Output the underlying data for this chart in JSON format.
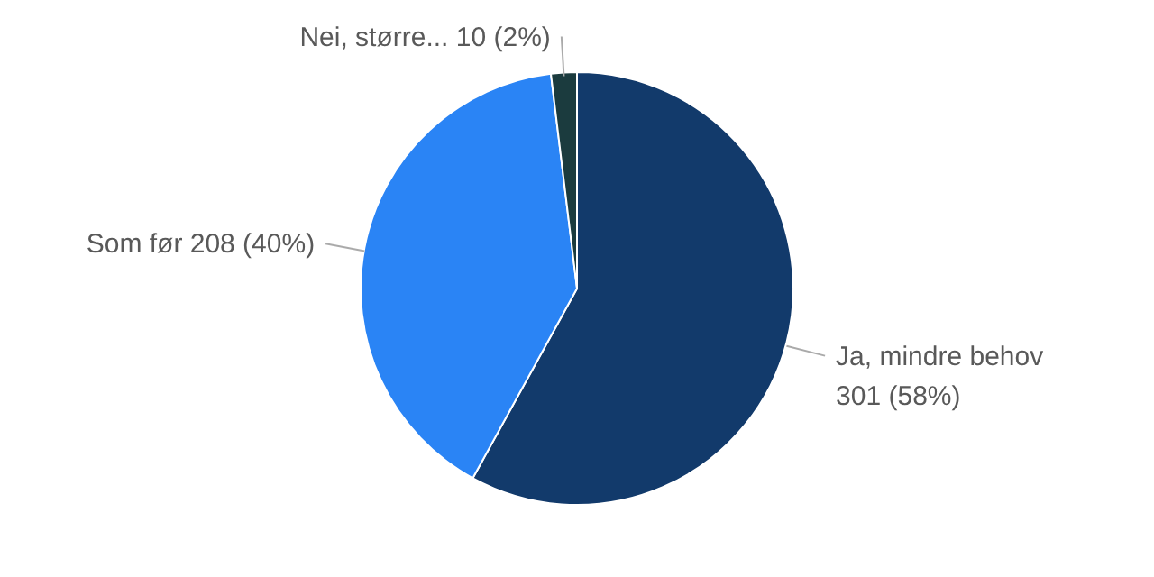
{
  "chart_data": {
    "type": "pie",
    "categories": [
      "Ja, mindre behov",
      "Som før",
      "Nei, større..."
    ],
    "values": [
      301,
      208,
      10
    ],
    "value_labels": [
      "301 (58%)",
      "208 (40%)",
      "10 (2%)"
    ],
    "colors": [
      "#123a6b",
      "#2a84f5",
      "#1b3b3e"
    ]
  }
}
